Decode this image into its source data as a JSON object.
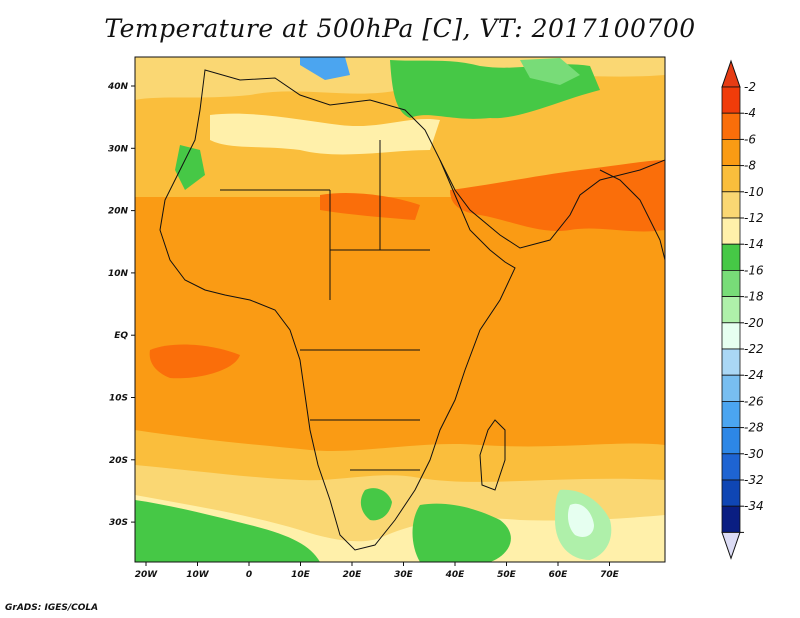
{
  "title": "Temperature at 500hPa [C], VT: 2017100700",
  "credit": "GrADS: IGES/COLA",
  "map": {
    "lon_ticks": [
      "20W",
      "10W",
      "0",
      "10E",
      "20E",
      "30E",
      "40E",
      "50E",
      "60E",
      "70E"
    ],
    "lat_ticks": [
      "40N",
      "30N",
      "20N",
      "10N",
      "EQ",
      "10S",
      "20S",
      "30S"
    ]
  },
  "colorbar": {
    "levels": [
      "-2",
      "-4",
      "-6",
      "-8",
      "-10",
      "-12",
      "-14",
      "-16",
      "-18",
      "-20",
      "-22",
      "-24",
      "-26",
      "-28",
      "-30",
      "-32",
      "-34"
    ],
    "colors": [
      "#f03c0a",
      "#fa6e0a",
      "#fa9b14",
      "#fabe3c",
      "#fad773",
      "#fff0aa",
      "#46c846",
      "#78dc78",
      "#aff0aa",
      "#e6fff0",
      "#aad7f5",
      "#78bef0",
      "#4ba5f0",
      "#2d87e6",
      "#1e64d2",
      "#0f46b4",
      "#0a1e82"
    ],
    "over_color": "#e63c14",
    "under_color": "#dcdcf5"
  }
}
